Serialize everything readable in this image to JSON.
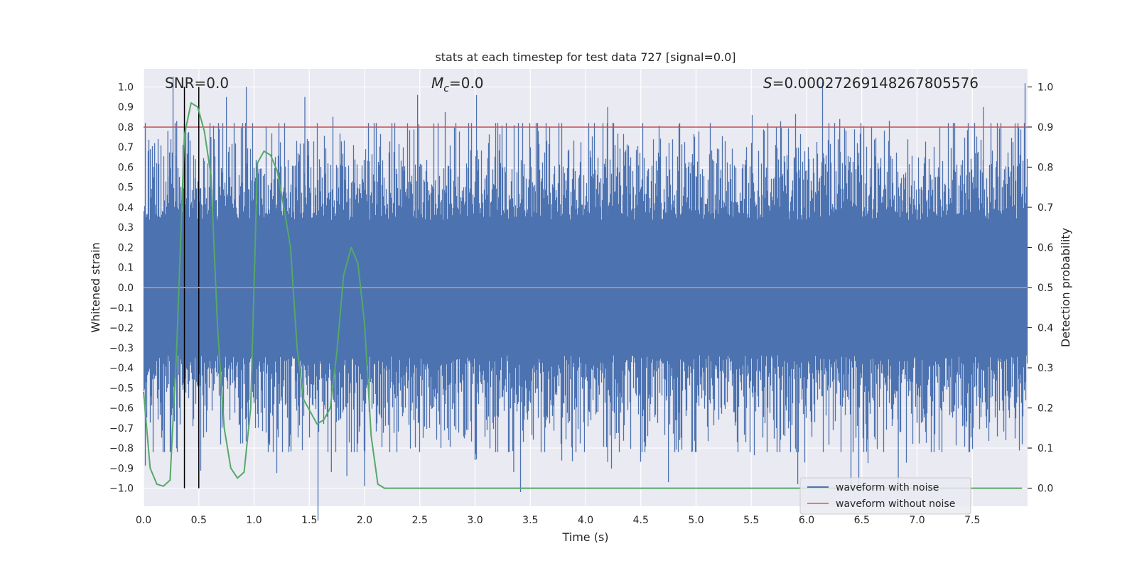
{
  "chart_data": {
    "type": "line",
    "title": "stats at each timestep for test data 727 [signal=0.0]",
    "xlabel": "Time (s)",
    "ylabel_left": "Whitened strain",
    "ylabel_right": "Detection probability",
    "xlim": [
      0.0,
      8.0
    ],
    "ylim_left": [
      -1.09,
      1.09
    ],
    "ylim_right": [
      -0.045,
      1.045
    ],
    "grid": true,
    "x_ticks": [
      0.0,
      0.5,
      1.0,
      1.5,
      2.0,
      2.5,
      3.0,
      3.5,
      4.0,
      4.5,
      5.0,
      5.5,
      6.0,
      6.5,
      7.0,
      7.5
    ],
    "x_tick_labels": [
      "0.0",
      "0.5",
      "1.0",
      "1.5",
      "2.0",
      "2.5",
      "3.0",
      "3.5",
      "4.0",
      "4.5",
      "5.0",
      "5.5",
      "6.0",
      "6.5",
      "7.0",
      "7.5"
    ],
    "y_left_ticks": [
      1.0,
      0.9,
      0.8,
      0.7,
      0.6,
      0.5,
      0.4,
      0.3,
      0.2,
      0.1,
      0.0,
      -0.1,
      -0.2,
      -0.3,
      -0.4,
      -0.5,
      -0.6,
      -0.7,
      -0.8,
      -0.9,
      -1.0
    ],
    "y_left_tick_labels": [
      "1.0",
      "0.9",
      "0.8",
      "0.7",
      "0.6",
      "0.5",
      "0.4",
      "0.3",
      "0.2",
      "0.1",
      "0.0",
      "−0.1",
      "−0.2",
      "−0.3",
      "−0.4",
      "−0.5",
      "−0.6",
      "−0.7",
      "−0.8",
      "−0.9",
      "−1.0"
    ],
    "y_right_ticks": [
      1.0,
      0.9,
      0.8,
      0.7,
      0.6,
      0.5,
      0.4,
      0.3,
      0.2,
      0.1,
      0.0
    ],
    "y_right_tick_labels": [
      "1.0",
      "0.9",
      "0.8",
      "0.7",
      "0.6",
      "0.5",
      "0.4",
      "0.3",
      "0.2",
      "0.1",
      "0.0"
    ],
    "annotations": {
      "snr": "SNR=0.0",
      "mc_symbol": "M",
      "mc_subscript": "c",
      "mc_value": "=0.0",
      "s_symbol": "S",
      "s_value": "=0.00027269148267805576"
    },
    "threshold": {
      "value": 0.9,
      "axis": "right",
      "color": "#c44e52"
    },
    "vertical_lines": [
      0.37,
      0.5
    ],
    "series": [
      {
        "name": "waveform with noise",
        "axis": "left",
        "color": "#4c72b0",
        "kind": "noise",
        "sample_rate_hz": 2048,
        "typical_envelope": 0.45,
        "peak_events": [
          {
            "t": 0.1,
            "v": 0.72
          },
          {
            "t": 0.22,
            "v": 0.78
          },
          {
            "t": 0.3,
            "v": 0.83
          },
          {
            "t": 0.47,
            "v": 0.64
          },
          {
            "t": 0.61,
            "v": 0.75
          },
          {
            "t": 0.75,
            "v": 0.95
          },
          {
            "t": 0.93,
            "v": 1.0
          },
          {
            "t": 1.46,
            "v": 0.95
          },
          {
            "t": 2.48,
            "v": 0.96
          },
          {
            "t": 4.2,
            "v": 0.9
          },
          {
            "t": 6.3,
            "v": 0.84
          },
          {
            "t": 7.6,
            "v": 0.9
          },
          {
            "t": 1.7,
            "v": -0.92
          },
          {
            "t": 1.84,
            "v": -0.94
          },
          {
            "t": 2.0,
            "v": -0.99
          },
          {
            "t": 4.75,
            "v": -0.97
          },
          {
            "t": 5.92,
            "v": -0.98
          },
          {
            "t": 6.83,
            "v": -0.98
          },
          {
            "t": 4.2,
            "v": -0.87
          },
          {
            "t": 3.0,
            "v": -0.86
          },
          {
            "t": 3.35,
            "v": -0.92
          }
        ]
      },
      {
        "name": "waveform without noise",
        "axis": "left",
        "color": "#dd8452",
        "kind": "line",
        "x": [
          0.0,
          8.0
        ],
        "y": [
          0.0,
          0.0
        ]
      },
      {
        "name": "detection probability",
        "axis": "right",
        "color": "#55a868",
        "kind": "line",
        "x": [
          0.0,
          0.06,
          0.12,
          0.18,
          0.24,
          0.3,
          0.37,
          0.43,
          0.49,
          0.55,
          0.61,
          0.67,
          0.73,
          0.79,
          0.85,
          0.91,
          0.97,
          1.03,
          1.09,
          1.15,
          1.21,
          1.27,
          1.33,
          1.39,
          1.45,
          1.51,
          1.57,
          1.63,
          1.69,
          1.75,
          1.81,
          1.88,
          1.94,
          2.0,
          2.06,
          2.12,
          2.18,
          2.24,
          2.5,
          3.0,
          4.0,
          5.0,
          6.0,
          7.0,
          7.95
        ],
        "y": [
          0.24,
          0.05,
          0.01,
          0.005,
          0.02,
          0.35,
          0.88,
          0.96,
          0.95,
          0.89,
          0.78,
          0.4,
          0.15,
          0.05,
          0.025,
          0.04,
          0.2,
          0.81,
          0.84,
          0.83,
          0.79,
          0.7,
          0.6,
          0.35,
          0.22,
          0.19,
          0.16,
          0.17,
          0.2,
          0.34,
          0.53,
          0.6,
          0.56,
          0.41,
          0.13,
          0.01,
          0.0,
          0.0,
          0.0,
          0.0,
          0.0,
          0.0,
          0.0,
          0.0,
          0.0
        ]
      }
    ],
    "legend": {
      "placement": "lower-right",
      "entries": [
        {
          "label": "waveform with noise",
          "color": "#4c72b0"
        },
        {
          "label": "waveform without noise",
          "color": "#dd8452"
        }
      ]
    },
    "colors": {
      "plot_background": "#eaeaf2",
      "grid": "#ffffff",
      "vline": "#000000"
    }
  }
}
